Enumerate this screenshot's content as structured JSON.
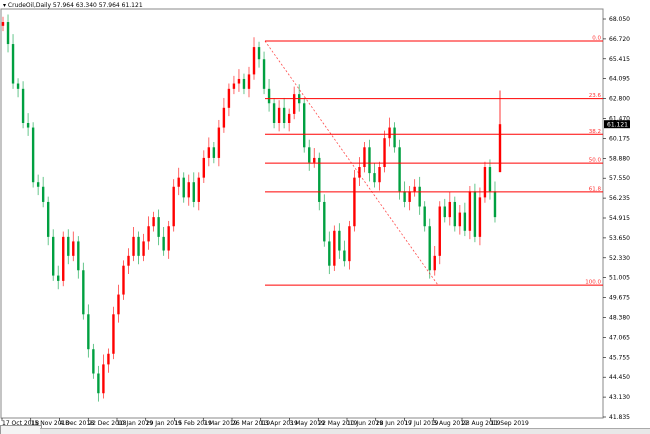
{
  "header": {
    "symbol_menu_icon": "triangle-down-icon",
    "title": "CrudeOil,Daily  57.964 63.340 57.964 61.121"
  },
  "colors": {
    "bull": "#ff0000",
    "bear": "#00a040",
    "fibonacci": "#ff0000",
    "current_price_bg": "#000000"
  },
  "chart_data": {
    "type": "candlestick",
    "title": "CrudeOil,Daily",
    "ylim": [
      41.835,
      68.05
    ],
    "grid": false,
    "y_ticks": [
      "68.050",
      "66.720",
      "65.415",
      "64.095",
      "62.800",
      "61.470",
      "60.175",
      "58.880",
      "57.550",
      "56.235",
      "54.915",
      "53.650",
      "52.330",
      "51.005",
      "49.675",
      "48.380",
      "47.065",
      "45.755",
      "44.450",
      "43.130",
      "41.835"
    ],
    "x_ticks": [
      "17 Oct 2018",
      "15 Nov 2018",
      "4 Dec 2018",
      "22 Dec 2018",
      "10 Jan 2019",
      "29 Jan 2019",
      "15 Feb 2019",
      "7 Mar 2019",
      "26 Mar 2019",
      "13 Apr 2019",
      "3 May 2019",
      "22 May 2019",
      "10 Jun 2019",
      "28 Jun 2019",
      "17 Jul 2019",
      "5 Aug 2019",
      "23 Aug 2019",
      "11 Sep 2019"
    ],
    "x_range": [
      "17 Oct 2018",
      "16 Sep 2019"
    ],
    "start_open": 67.6,
    "closes": [
      67.85,
      66.4,
      63.8,
      63.45,
      61.2,
      60.9,
      57.3,
      57.0,
      56.0,
      53.7,
      51.15,
      50.8,
      53.7,
      52.45,
      53.4,
      51.5,
      48.6,
      46.3,
      44.7,
      43.4,
      45.3,
      46.0,
      48.6,
      49.9,
      51.8,
      52.45,
      53.7,
      52.45,
      53.4,
      54.4,
      55.0,
      53.7,
      52.8,
      54.4,
      57.0,
      57.6,
      56.3,
      57.3,
      56.0,
      57.6,
      58.9,
      59.6,
      58.9,
      60.9,
      62.2,
      63.45,
      63.8,
      64.1,
      63.45,
      64.4,
      66.2,
      65.4,
      63.45,
      62.5,
      61.2,
      62.2,
      61.2,
      61.8,
      63.1,
      62.5,
      59.6,
      58.6,
      58.9,
      56.0,
      53.4,
      51.8,
      54.1,
      52.8,
      52.1,
      54.4,
      57.6,
      58.3,
      59.6,
      57.9,
      57.3,
      58.3,
      60.2,
      60.9,
      59.6,
      56.7,
      56.0,
      56.7,
      57.0,
      55.7,
      54.4,
      51.5,
      52.45,
      55.7,
      55.0,
      56.0,
      54.4,
      55.3,
      54.1,
      56.7,
      53.7,
      56.3,
      58.3,
      56.7,
      55.0
    ],
    "last_candle": {
      "date": "16 Sep 2019",
      "open": 57.964,
      "high": 63.34,
      "low": 57.964,
      "close": 61.121
    },
    "current_price": "61.121",
    "fibonacci": {
      "high": 66.6,
      "low": 50.52,
      "levels": [
        {
          "label": "0.0",
          "ratio": 0.0
        },
        {
          "label": "23.6",
          "ratio": 0.236
        },
        {
          "label": "38.2",
          "ratio": 0.382
        },
        {
          "label": "50.0",
          "ratio": 0.5
        },
        {
          "label": "61.8",
          "ratio": 0.618
        },
        {
          "label": "100.0",
          "ratio": 1.0
        }
      ]
    }
  }
}
